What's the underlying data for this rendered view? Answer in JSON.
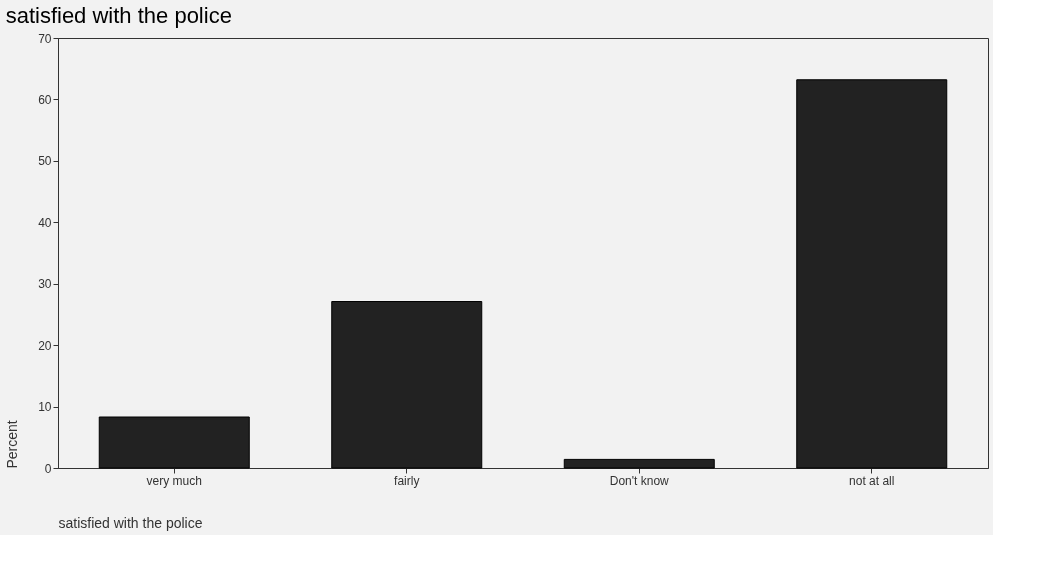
{
  "chart_data": {
    "type": "bar",
    "title": "satisfied with the police",
    "xlabel": "satisfied with the police",
    "ylabel": "Percent",
    "categories": [
      "very much",
      "fairly",
      "Don't know",
      "not at all"
    ],
    "values": [
      8.3,
      27.1,
      1.4,
      63.2
    ],
    "color": "#222222",
    "ylim": [
      0,
      70
    ],
    "yticks": [
      0,
      10,
      20,
      30,
      40,
      50,
      60,
      70
    ],
    "grid": false
  }
}
